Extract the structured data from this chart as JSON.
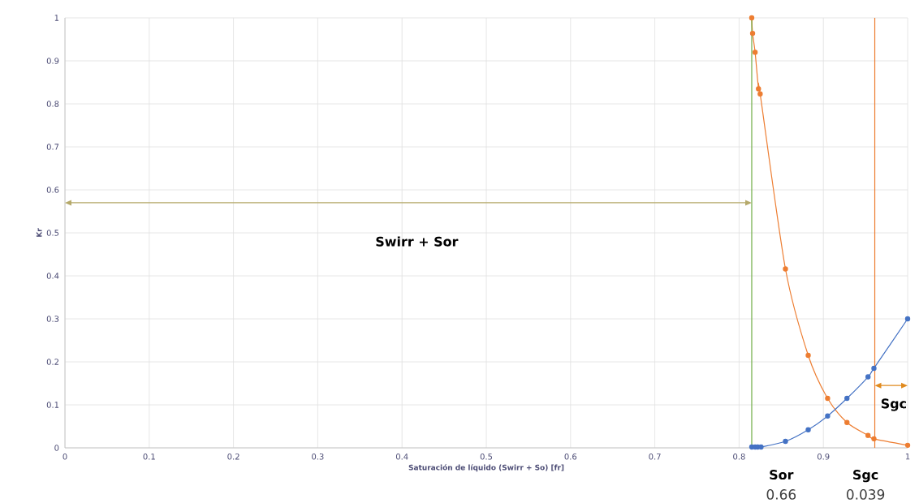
{
  "chart_data": {
    "type": "line",
    "xlabel": "Saturación de líquido (Swirr + So) [fr]",
    "ylabel": "Kr",
    "xlim": [
      0,
      1
    ],
    "ylim": [
      0,
      1
    ],
    "xticks": [
      0,
      0.1,
      0.2,
      0.3,
      0.4,
      0.5,
      0.6,
      0.7,
      0.8,
      0.9,
      1
    ],
    "yticks": [
      0,
      0.1,
      0.2,
      0.3,
      0.4,
      0.5,
      0.6,
      0.7,
      0.8,
      0.9,
      1
    ],
    "grid": true,
    "marker": "circle",
    "line_style": "solid",
    "series": [
      {
        "color": "#ed7d31",
        "x": [
          0.815,
          0.816,
          0.819,
          0.823,
          0.825,
          0.855,
          0.882,
          0.905,
          0.928,
          0.953,
          0.96,
          1.0
        ],
        "values": [
          1.0,
          0.964,
          0.92,
          0.835,
          0.823,
          0.416,
          0.215,
          0.115,
          0.059,
          0.029,
          0.021,
          0.006
        ]
      },
      {
        "color": "#4472c4",
        "x": [
          0.815,
          0.819,
          0.822,
          0.826,
          0.855,
          0.882,
          0.905,
          0.928,
          0.953,
          0.96,
          1.0
        ],
        "values": [
          0.002,
          0.002,
          0.002,
          0.002,
          0.015,
          0.042,
          0.074,
          0.115,
          0.165,
          0.185,
          0.3
        ]
      }
    ],
    "ref_lines": [
      {
        "axis": "x",
        "value": 0.815,
        "color": "#70ad47"
      },
      {
        "axis": "x",
        "value": 0.961,
        "color": "#ed7d31"
      }
    ],
    "annotations": [
      "Swirr + Sor",
      "Sgc",
      "Sor",
      "0.66",
      "Sgc",
      "0.039"
    ]
  }
}
